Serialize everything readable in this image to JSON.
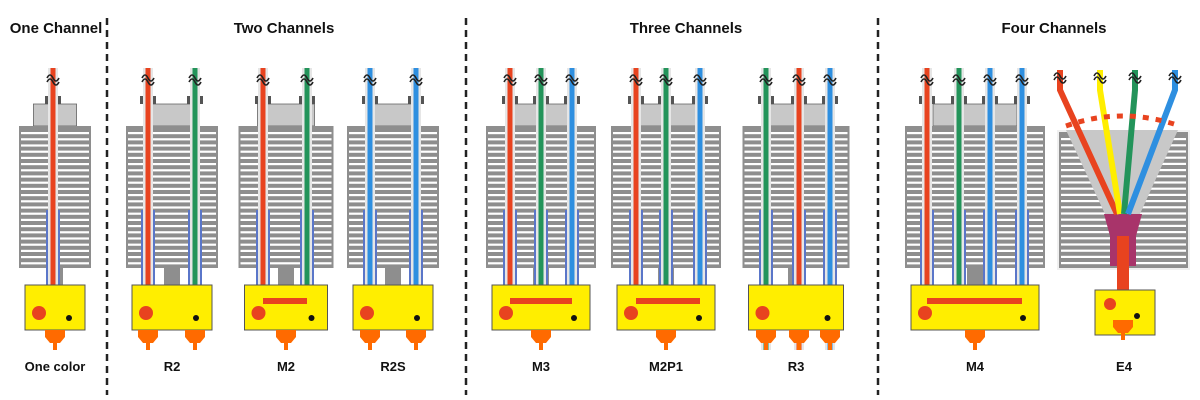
{
  "colors": {
    "red": "#e8431f",
    "green": "#23945a",
    "blue": "#2e8fe0",
    "yellow": "#ffee00",
    "orange": "#ff6a00",
    "heatsink": "#8e8e8e",
    "metal_light": "#c8c8c8",
    "liner": "#5a76c9",
    "chamber": "#a8346a",
    "divider": "#222222"
  },
  "groups": [
    {
      "title": "One Channel"
    },
    {
      "title": "Two Channels"
    },
    {
      "title": "Three Channels"
    },
    {
      "title": "Four Channels"
    }
  ],
  "hotends": [
    {
      "name": "One color",
      "group": 0,
      "filaments": [
        "red"
      ],
      "type": "single"
    },
    {
      "name": "R2",
      "group": 1,
      "filaments": [
        "red",
        "green"
      ],
      "type": "separate"
    },
    {
      "name": "M2",
      "group": 1,
      "filaments": [
        "red",
        "green"
      ],
      "type": "mix"
    },
    {
      "name": "R2S",
      "group": 1,
      "filaments": [
        "blue",
        "blue"
      ],
      "type": "separate_shared_block"
    },
    {
      "name": "M3",
      "group": 2,
      "filaments": [
        "red",
        "green",
        "blue"
      ],
      "type": "mix"
    },
    {
      "name": "M2P1",
      "group": 2,
      "filaments": [
        "red",
        "green",
        "blue"
      ],
      "type": "mix_plus_one"
    },
    {
      "name": "R3",
      "group": 2,
      "filaments": [
        "green",
        "red",
        "blue"
      ],
      "type": "separate"
    },
    {
      "name": "M4",
      "group": 3,
      "filaments": [
        "red",
        "green",
        "blue",
        "blue"
      ],
      "type": "mix"
    },
    {
      "name": "E4",
      "group": 3,
      "filaments": [
        "red",
        "yellow",
        "green",
        "blue"
      ],
      "type": "funnel"
    }
  ]
}
